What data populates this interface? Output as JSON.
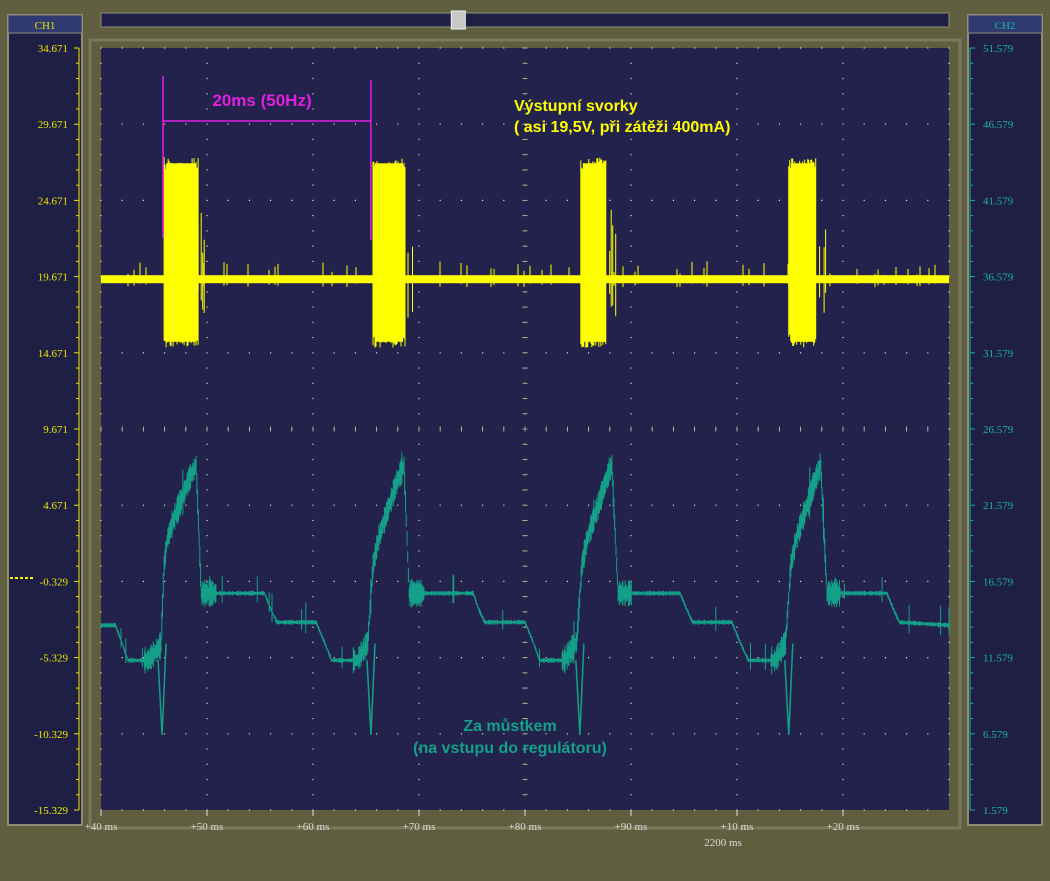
{
  "window": {
    "ch1_header": "CH1",
    "ch2_header": "CH2",
    "scrollbar_position": 0.42
  },
  "colors": {
    "background": "#5f5f40",
    "panel": "#1f1f45",
    "plot": "#22224c",
    "ch1": "#ffff00",
    "ch2": "#14a088",
    "ch1_axis": "#e8e800",
    "ch2_axis": "#1ab49a",
    "cursor": "#e020e0",
    "grid": "#e4e4b0"
  },
  "chart_data": {
    "type": "line",
    "x_ticks": [
      "+40 ms",
      "+50 ms",
      "+60 ms",
      "+70 ms",
      "+80 ms",
      "+90 ms",
      "+10 ms",
      "+20 ms"
    ],
    "x_scale_label": "2200 ms",
    "ch1_ticks": [
      "34.671",
      "29.671",
      "24.671",
      "19.671",
      "14.671",
      "9.671",
      "4.671",
      "-0.329",
      "-5.329",
      "-10.329",
      "-15.329"
    ],
    "ch2_ticks": [
      "51.579",
      "46.579",
      "41.579",
      "36.579",
      "31.579",
      "26.579",
      "21.579",
      "16.579",
      "11.579",
      "6.579",
      "1.579"
    ],
    "ch1_range": [
      -15.329,
      34.671
    ],
    "ch2_range": [
      1.579,
      51.579
    ],
    "x_range_ms": [
      40,
      122
    ],
    "ch1_ground_level": -0.329,
    "series": [
      {
        "channel": "CH1",
        "baseline_v": 19.5,
        "burst_low_v": 15.0,
        "burst_high_v": 27.5,
        "bursts_ms": [
          [
            46.1,
            49.4
          ],
          [
            66.3,
            69.4
          ],
          [
            86.4,
            88.9
          ],
          [
            106.5,
            109.2
          ]
        ]
      },
      {
        "channel": "CH2",
        "points_ms_v": [
          [
            40.0,
            13.7
          ],
          [
            41.4,
            13.7
          ],
          [
            42.0,
            12.6
          ],
          [
            42.6,
            11.4
          ],
          [
            44.6,
            11.4
          ],
          [
            45.8,
            12.4
          ],
          [
            46.1,
            17.6
          ],
          [
            46.4,
            19.3
          ],
          [
            47.0,
            20.6
          ],
          [
            47.7,
            21.8
          ],
          [
            48.4,
            23.1
          ],
          [
            49.2,
            24.2
          ],
          [
            49.7,
            15.8
          ],
          [
            53.2,
            15.8
          ],
          [
            55.8,
            15.8
          ],
          [
            56.4,
            14.8
          ],
          [
            57.0,
            13.9
          ],
          [
            59.6,
            13.9
          ],
          [
            60.8,
            13.9
          ],
          [
            61.6,
            12.6
          ],
          [
            62.3,
            11.4
          ],
          [
            64.8,
            11.4
          ],
          [
            65.8,
            12.6
          ],
          [
            66.3,
            17.6
          ],
          [
            66.8,
            19.3
          ],
          [
            67.4,
            20.6
          ],
          [
            68.0,
            21.8
          ],
          [
            68.6,
            23.1
          ],
          [
            69.3,
            24.2
          ],
          [
            69.8,
            15.8
          ],
          [
            73.5,
            15.8
          ],
          [
            76.0,
            15.8
          ],
          [
            76.5,
            14.8
          ],
          [
            77.1,
            13.9
          ],
          [
            80.0,
            13.9
          ],
          [
            81.0,
            13.9
          ],
          [
            81.8,
            12.6
          ],
          [
            82.4,
            11.4
          ],
          [
            84.8,
            11.4
          ],
          [
            86.0,
            12.6
          ],
          [
            86.5,
            17.6
          ],
          [
            87.0,
            19.3
          ],
          [
            87.6,
            20.6
          ],
          [
            88.2,
            21.8
          ],
          [
            88.8,
            23.1
          ],
          [
            89.4,
            24.2
          ],
          [
            90.0,
            15.8
          ],
          [
            93.5,
            15.8
          ],
          [
            96.0,
            15.8
          ],
          [
            96.6,
            14.8
          ],
          [
            97.2,
            13.9
          ],
          [
            100.0,
            13.9
          ],
          [
            101.0,
            13.9
          ],
          [
            101.8,
            12.6
          ],
          [
            102.6,
            11.4
          ],
          [
            105.2,
            11.4
          ],
          [
            106.2,
            12.6
          ],
          [
            106.7,
            17.6
          ],
          [
            107.2,
            19.3
          ],
          [
            107.8,
            20.6
          ],
          [
            108.4,
            21.8
          ],
          [
            109.0,
            23.1
          ],
          [
            109.6,
            24.2
          ],
          [
            110.2,
            15.8
          ],
          [
            113.5,
            15.8
          ],
          [
            116.0,
            15.8
          ],
          [
            116.6,
            14.8
          ],
          [
            117.2,
            13.9
          ],
          [
            122.0,
            13.7
          ]
        ]
      }
    ],
    "cursors_ms": [
      46.0,
      66.1
    ],
    "annotations": {
      "period": "20ms  (50Hz)",
      "ch1_line1": "Výstupní svorky",
      "ch1_line2": "( asi 19,5V, při zátěži 400mA)",
      "ch2_line1": "Za můstkem",
      "ch2_line2": "(na vstupu do regulátoru)"
    }
  }
}
